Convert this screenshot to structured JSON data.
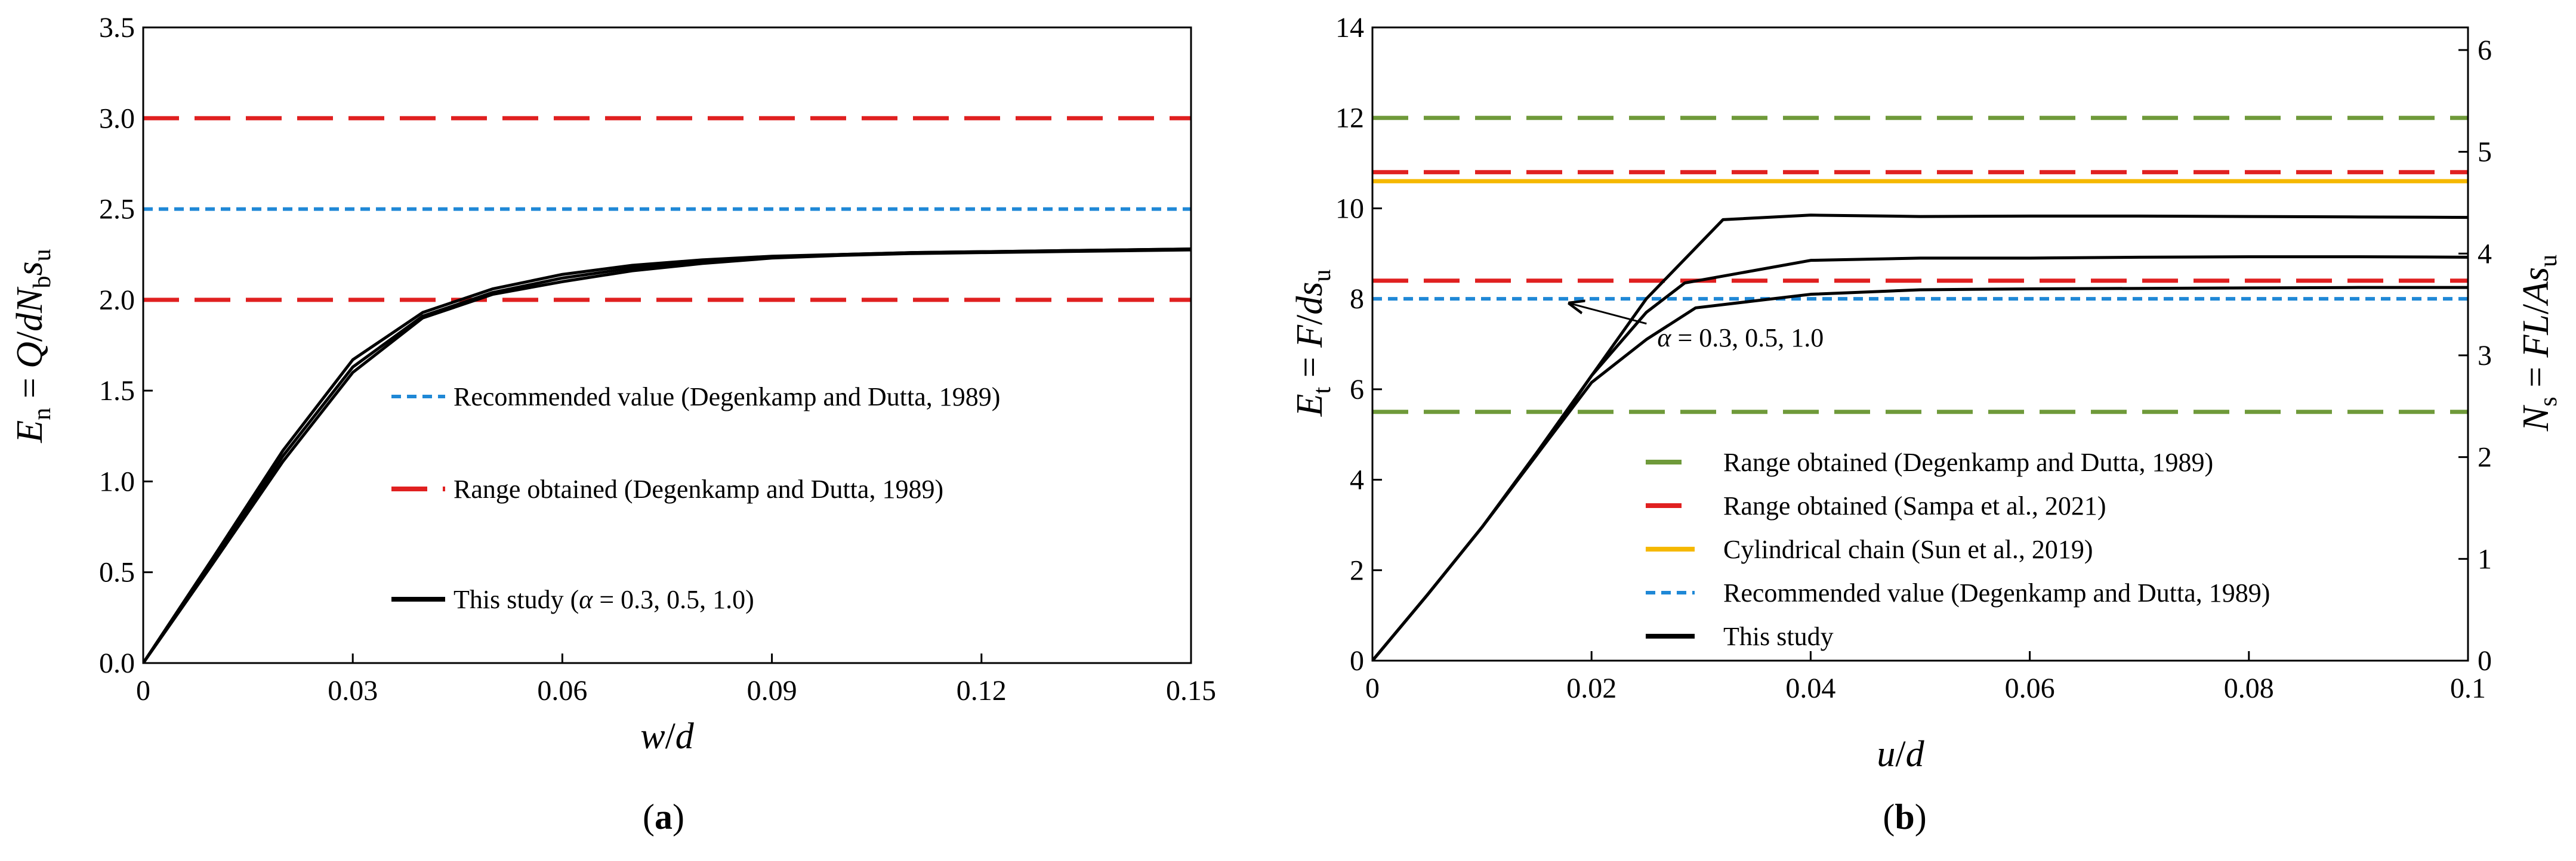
{
  "chart_data": [
    {
      "type": "line",
      "panel": {
        "open": "(",
        "letter": "a",
        "close": ")"
      },
      "xlabel": {
        "parts": [
          "w",
          "/",
          "d"
        ]
      },
      "ylabel": {
        "parts": [
          "E",
          "n",
          " = ",
          "Q",
          "/",
          "dN",
          "b",
          "s",
          "u"
        ]
      },
      "xlim": [
        0,
        0.15
      ],
      "ylim": [
        0,
        3.5
      ],
      "xticks": [
        0,
        0.03,
        0.06,
        0.09,
        0.12,
        0.15
      ],
      "xtick_labels": [
        "0",
        "0.03",
        "0.06",
        "0.09",
        "0.12",
        "0.15"
      ],
      "yticks": [
        0,
        0.5,
        1.0,
        1.5,
        2.0,
        2.5,
        3.0,
        3.5
      ],
      "ytick_labels": [
        "0.0",
        "0.5",
        "1.0",
        "1.5",
        "2.0",
        "2.5",
        "3.0",
        "3.5"
      ],
      "reference_lines": [
        {
          "name": "Recommended value (Degenkamp and Dutta, 1989)",
          "y": [
            2.5
          ],
          "color": "#1f88d6",
          "style": "short-dash"
        },
        {
          "name": "Range obtained (Degenkamp and Dutta, 1989)",
          "y": [
            2.0,
            3.0
          ],
          "color": "#e02020",
          "style": "long-dash"
        }
      ],
      "series": [
        {
          "name": "This study (α = 0.3, 0.5, 1.0) α=0.3",
          "color": "#000000",
          "x": [
            0,
            0.01,
            0.02,
            0.03,
            0.04,
            0.05,
            0.06,
            0.07,
            0.08,
            0.09,
            0.1,
            0.11,
            0.12,
            0.13,
            0.14,
            0.15
          ],
          "y": [
            0,
            0.58,
            1.17,
            1.67,
            1.93,
            2.06,
            2.14,
            2.19,
            2.22,
            2.24,
            2.25,
            2.26,
            2.265,
            2.27,
            2.275,
            2.28
          ]
        },
        {
          "name": "This study (α = 0.3, 0.5, 1.0) α=0.5",
          "color": "#000000",
          "x": [
            0,
            0.01,
            0.02,
            0.03,
            0.04,
            0.05,
            0.06,
            0.07,
            0.08,
            0.09,
            0.1,
            0.11,
            0.12,
            0.13,
            0.14,
            0.15
          ],
          "y": [
            0,
            0.56,
            1.14,
            1.63,
            1.91,
            2.04,
            2.12,
            2.175,
            2.21,
            2.235,
            2.25,
            2.26,
            2.265,
            2.27,
            2.275,
            2.28
          ]
        },
        {
          "name": "This study (α = 0.3, 0.5, 1.0) α=1.0",
          "color": "#000000",
          "x": [
            0,
            0.01,
            0.02,
            0.03,
            0.04,
            0.05,
            0.06,
            0.07,
            0.08,
            0.09,
            0.1,
            0.11,
            0.12,
            0.13,
            0.14,
            0.15
          ],
          "y": [
            0,
            0.55,
            1.11,
            1.6,
            1.9,
            2.03,
            2.1,
            2.16,
            2.2,
            2.23,
            2.245,
            2.255,
            2.26,
            2.265,
            2.27,
            2.275
          ]
        }
      ],
      "legend": {
        "placement": "bottom-right",
        "items": [
          {
            "label": "Recommended value (Degenkamp and Dutta, 1989)",
            "color": "#1f88d6",
            "style": "short-dash"
          },
          {
            "label": "Range obtained (Degenkamp and Dutta, 1989)",
            "color": "#e02020",
            "style": "long-dash"
          },
          {
            "label_parts": [
              "This study (",
              "α",
              " = 0.3, 0.5, 1.0)"
            ],
            "color": "#000000",
            "style": "solid"
          }
        ]
      }
    },
    {
      "type": "line",
      "panel": {
        "open": "(",
        "letter": "b",
        "close": ")"
      },
      "xlabel": {
        "parts": [
          "u",
          "/",
          "d"
        ]
      },
      "ylabel": {
        "parts": [
          "E",
          "t",
          " = ",
          "F",
          "/",
          "ds",
          "u"
        ]
      },
      "y2label": {
        "parts": [
          "N",
          "s",
          " = ",
          "FL",
          "/",
          "As",
          "u"
        ]
      },
      "xlim": [
        0,
        0.1
      ],
      "ylim": [
        0,
        14
      ],
      "y2lim": [
        0,
        6.222
      ],
      "xticks": [
        0,
        0.02,
        0.04,
        0.06,
        0.08,
        0.1
      ],
      "xtick_labels": [
        "0",
        "0.02",
        "0.04",
        "0.06",
        "0.08",
        "0.1"
      ],
      "yticks": [
        0,
        2,
        4,
        6,
        8,
        10,
        12,
        14
      ],
      "ytick_labels": [
        "0",
        "2",
        "4",
        "6",
        "8",
        "10",
        "12",
        "14"
      ],
      "y2ticks": [
        0,
        1,
        2,
        3,
        4,
        5,
        6
      ],
      "y2tick_labels": [
        "0",
        "1",
        "2",
        "3",
        "4",
        "5",
        "6"
      ],
      "reference_lines": [
        {
          "name": "Range obtained (Degenkamp and Dutta, 1989)",
          "y": [
            5.5,
            12.0
          ],
          "color": "#6f9a3a",
          "style": "long-dash"
        },
        {
          "name": "Range obtained (Sampa et al., 2021)",
          "y": [
            8.4,
            10.8
          ],
          "color": "#e02020",
          "style": "long-dash"
        },
        {
          "name": "Cylindrical chain (Sun et al., 2019)",
          "y": [
            10.6
          ],
          "color": "#f5b800",
          "style": "solid"
        },
        {
          "name": "Recommended value (Degenkamp and Dutta, 1989)",
          "y": [
            8.0
          ],
          "color": "#1f88d6",
          "style": "short-dash"
        }
      ],
      "series": [
        {
          "name": "This study α=0.3",
          "color": "#000000",
          "x": [
            0,
            0.005,
            0.01,
            0.015,
            0.02,
            0.025,
            0.0295,
            0.04,
            0.05,
            0.06,
            0.07,
            0.08,
            0.09,
            0.1
          ],
          "y": [
            0,
            1.45,
            2.95,
            4.55,
            6.15,
            7.1,
            7.8,
            8.1,
            8.2,
            8.22,
            8.23,
            8.24,
            8.25,
            8.25
          ]
        },
        {
          "name": "This study α=0.5",
          "color": "#000000",
          "x": [
            0,
            0.005,
            0.01,
            0.015,
            0.02,
            0.025,
            0.0285,
            0.04,
            0.05,
            0.06,
            0.07,
            0.08,
            0.09,
            0.1
          ],
          "y": [
            0,
            1.45,
            2.95,
            4.55,
            6.3,
            7.7,
            8.35,
            8.85,
            8.9,
            8.9,
            8.92,
            8.93,
            8.93,
            8.92
          ]
        },
        {
          "name": "This study α=1.0",
          "color": "#000000",
          "x": [
            0,
            0.005,
            0.01,
            0.015,
            0.02,
            0.025,
            0.032,
            0.04,
            0.05,
            0.06,
            0.07,
            0.08,
            0.09,
            0.1
          ],
          "y": [
            0,
            1.45,
            2.95,
            4.6,
            6.3,
            8.0,
            9.75,
            9.85,
            9.82,
            9.83,
            9.83,
            9.82,
            9.81,
            9.8
          ]
        }
      ],
      "annotation": {
        "parts": [
          "α",
          " = 0.3, 0.5, 1.0"
        ],
        "xy": [
          0.018,
          7.9
        ],
        "xytext": [
          0.026,
          6.95
        ]
      },
      "legend": {
        "placement": "bottom-right",
        "items": [
          {
            "label": "Range obtained (Degenkamp and Dutta, 1989)",
            "color": "#6f9a3a",
            "style": "long-dash"
          },
          {
            "label": "Range obtained (Sampa et al., 2021)",
            "color": "#e02020",
            "style": "long-dash"
          },
          {
            "label": "Cylindrical chain (Sun et al., 2019)",
            "color": "#f5b800",
            "style": "solid"
          },
          {
            "label": "Recommended value (Degenkamp and Dutta, 1989)",
            "color": "#1f88d6",
            "style": "short-dash"
          },
          {
            "label": "This study",
            "color": "#000000",
            "style": "solid"
          }
        ]
      }
    }
  ]
}
